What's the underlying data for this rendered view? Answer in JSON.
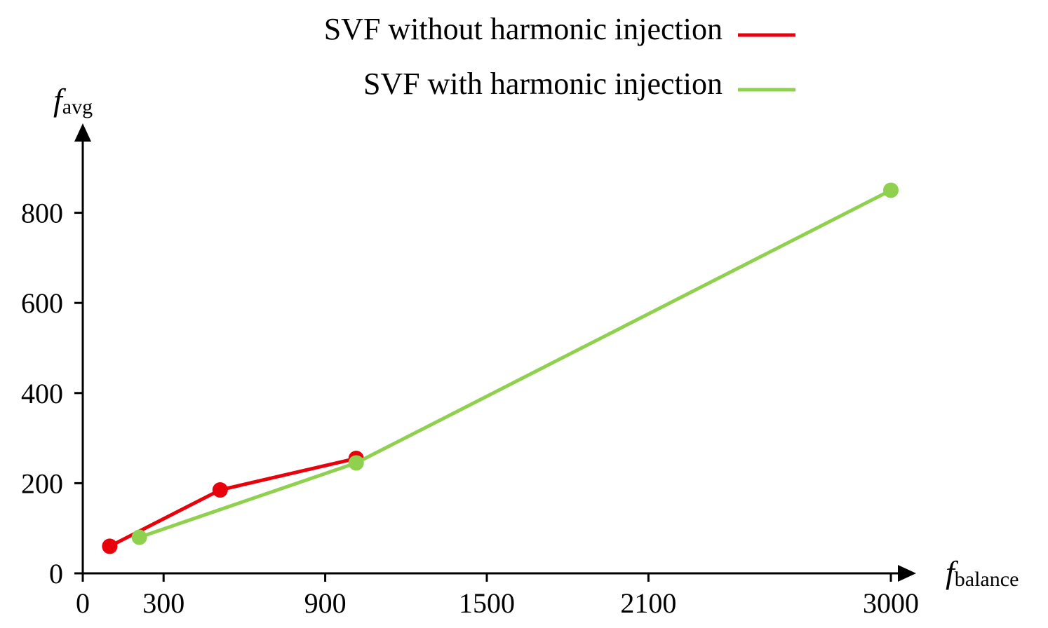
{
  "chart_data": {
    "type": "line",
    "title": "",
    "xlabel": "f_balance",
    "xlabel_main": "f",
    "xlabel_sub": "balance",
    "ylabel": "f_avg",
    "ylabel_main": "f",
    "ylabel_sub": "avg",
    "xlim": [
      0,
      3080
    ],
    "ylim": [
      0,
      960
    ],
    "x_ticks": [
      300,
      900,
      1500,
      2100,
      3000
    ],
    "x_tick_labels": [
      "300",
      "900",
      "1500",
      "2100",
      "3000"
    ],
    "x_origin_label": "0",
    "y_ticks": [
      0,
      200,
      400,
      600,
      800
    ],
    "y_tick_labels": [
      "0",
      "200",
      "400",
      "600",
      "800"
    ],
    "legend_position": "top-center",
    "grid": false,
    "series": [
      {
        "name": "SVF without harmonic injection",
        "color": "#e8000b",
        "points": [
          [
            100,
            60
          ],
          [
            510,
            185
          ],
          [
            1015,
            255
          ]
        ]
      },
      {
        "name": "SVF with harmonic injection",
        "color": "#8fd14f",
        "points": [
          [
            210,
            80
          ],
          [
            1015,
            245
          ],
          [
            3000,
            850
          ]
        ]
      }
    ]
  }
}
